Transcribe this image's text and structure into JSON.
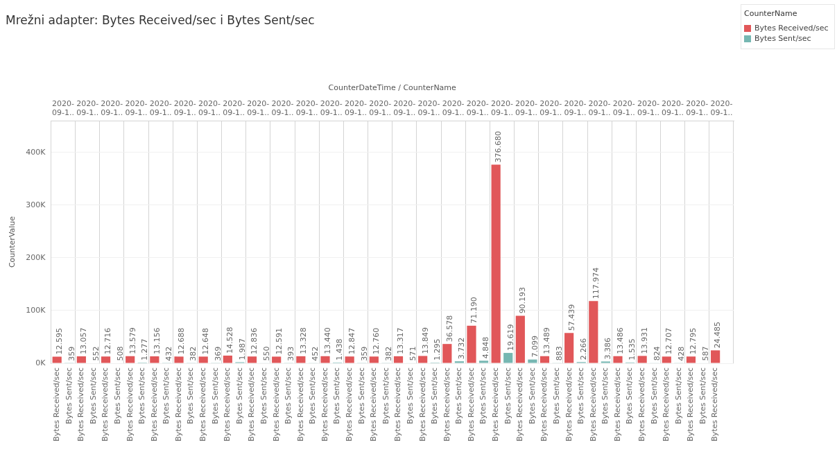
{
  "chart_data": {
    "type": "bar",
    "title": "Mrežni adapter: Bytes Received/sec i Bytes Sent/sec",
    "xlabel": "CounterDateTime / CounterName",
    "ylabel": "CounterValue",
    "legend_title": "CounterName",
    "categories": [
      "2020-09-1..",
      "2020-09-1..",
      "2020-09-1..",
      "2020-09-1..",
      "2020-09-1..",
      "2020-09-1..",
      "2020-09-1..",
      "2020-09-1..",
      "2020-09-1..",
      "2020-09-1..",
      "2020-09-1..",
      "2020-09-1..",
      "2020-09-1..",
      "2020-09-1..",
      "2020-09-1..",
      "2020-09-1..",
      "2020-09-1..",
      "2020-09-1..",
      "2020-09-1..",
      "2020-09-1..",
      "2020-09-1..",
      "2020-09-1..",
      "2020-09-1..",
      "2020-09-1..",
      "2020-09-1..",
      "2020-09-1..",
      "2020-09-1..",
      "2020-09-1.."
    ],
    "series": [
      {
        "name": "Bytes Received/sec",
        "color": "#e15759",
        "values": [
          12595,
          13057,
          12716,
          13579,
          13156,
          12688,
          12648,
          14528,
          12836,
          12591,
          13328,
          13440,
          12847,
          12760,
          13317,
          13849,
          36578,
          71190,
          376680,
          90193,
          13489,
          57439,
          117974,
          13486,
          13931,
          12707,
          12795,
          24485
        ],
        "value_labels": [
          "12.595",
          "13.057",
          "12.716",
          "13.579",
          "13.156",
          "12.688",
          "12.648",
          "14.528",
          "12.836",
          "12.591",
          "13.328",
          "13.440",
          "12.847",
          "12.760",
          "13.317",
          "13.849",
          "36.578",
          "71.190",
          "376.680",
          "90.193",
          "13.489",
          "57.439",
          "117.974",
          "13.486",
          "13.931",
          "12.707",
          "12.795",
          "24.485"
        ]
      },
      {
        "name": "Bytes Sent/sec",
        "color": "#76b7b2",
        "values": [
          359,
          552,
          508,
          1277,
          432,
          382,
          369,
          1987,
          550,
          393,
          452,
          1438,
          359,
          382,
          571,
          1295,
          3732,
          4848,
          19619,
          7099,
          883,
          2266,
          3386,
          1535,
          824,
          428,
          587,
          null
        ],
        "value_labels": [
          "359",
          "552",
          "508",
          "1.277",
          "432",
          "382",
          "369",
          "1.987",
          "550",
          "393",
          "452",
          "1.438",
          "359",
          "382",
          "571",
          "1.295",
          "3.732",
          "4.848",
          "19.619",
          "7.099",
          "883",
          "2.266",
          "3.386",
          "1.535",
          "824",
          "428",
          "587",
          null
        ]
      }
    ],
    "ylim": [
      0,
      460000
    ],
    "yticks": [
      {
        "value": 0,
        "label": "0K"
      },
      {
        "value": 100000,
        "label": "100K"
      },
      {
        "value": 200000,
        "label": "200K"
      },
      {
        "value": 300000,
        "label": "300K"
      },
      {
        "value": 400000,
        "label": "400K"
      }
    ],
    "grid": true,
    "legend": "top right"
  }
}
